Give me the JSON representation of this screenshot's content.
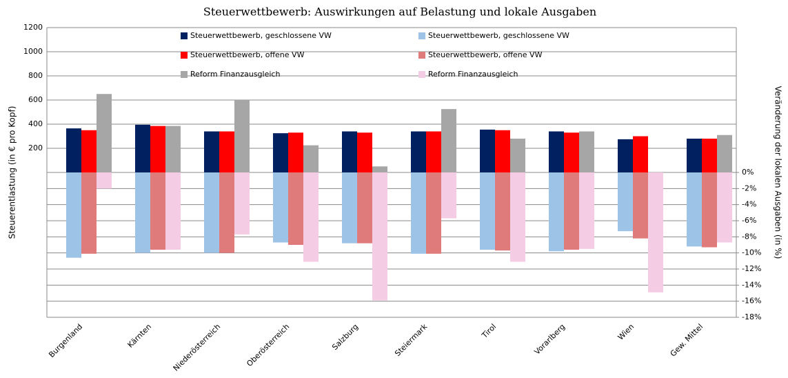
{
  "chart_data": {
    "type": "bar",
    "title": "Steuerwettbewerb: Auswirkungen auf Belastung und lokale Ausgaben",
    "y_label": "Steuerentlastung (in € pro Kopf)",
    "y2_label": "Veränderung der lokalen Ausgaben (in %)",
    "categories": [
      "Burgenland",
      "Kärnten",
      "Niederösterreich",
      "Oberösterreich",
      "Salzburg",
      "Steiermark",
      "Tirol",
      "Vorarlberg",
      "Wien",
      "Gew. Mittel"
    ],
    "series": [
      {
        "name": "Steuerwettbewerb, geschlossene VW",
        "color": "#002060",
        "axis": "y",
        "values": [
          365,
          395,
          340,
          325,
          340,
          340,
          355,
          340,
          275,
          280
        ]
      },
      {
        "name": "Steuerwettbewerb, offene VW",
        "color": "#ff0000",
        "axis": "y",
        "values": [
          350,
          385,
          340,
          330,
          330,
          340,
          350,
          330,
          300,
          280
        ]
      },
      {
        "name": "Reform Finanzausgleich",
        "color": "#a6a6a6",
        "axis": "y",
        "values": [
          650,
          385,
          600,
          225,
          50,
          525,
          280,
          340,
          null,
          310
        ]
      },
      {
        "name": "Steuerwettbewerb, geschlossene VW",
        "color": "#9dc3e6",
        "axis": "y2",
        "values": [
          -10.6,
          -10,
          -10,
          -8.7,
          -8.8,
          -10.1,
          -9.6,
          -9.8,
          -7.3,
          -9.2
        ]
      },
      {
        "name": "Steuerwettbewerb, offene VW",
        "color": "#e07b7b",
        "axis": "y2",
        "values": [
          -10.1,
          -9.6,
          -10,
          -9,
          -8.8,
          -10.1,
          -9.7,
          -9.6,
          -8.2,
          -9.3
        ]
      },
      {
        "name": "Reform Finanzausgleich",
        "color": "#f4cce4",
        "axis": "y2",
        "values": [
          -2,
          -9.6,
          -7.7,
          -11.1,
          -15.9,
          -5.7,
          -11.1,
          -9.5,
          -14.9,
          -8.7
        ]
      }
    ],
    "ylim": [
      -1200,
      1200
    ],
    "yticks": [
      200,
      400,
      600,
      800,
      1000,
      1200
    ],
    "y2lim": [
      -18,
      18
    ],
    "y2ticks": [
      {
        "value": 0,
        "label": "0%"
      },
      {
        "value": -2,
        "label": "-2%"
      },
      {
        "value": -4,
        "label": "-4%"
      },
      {
        "value": -6,
        "label": "-6%"
      },
      {
        "value": -8,
        "label": "-8%"
      },
      {
        "value": -10,
        "label": "-10%"
      },
      {
        "value": -12,
        "label": "-12%"
      },
      {
        "value": -14,
        "label": "-14%"
      },
      {
        "value": -16,
        "label": "-16%"
      },
      {
        "value": -18,
        "label": "-18%"
      }
    ],
    "grid": true
  }
}
